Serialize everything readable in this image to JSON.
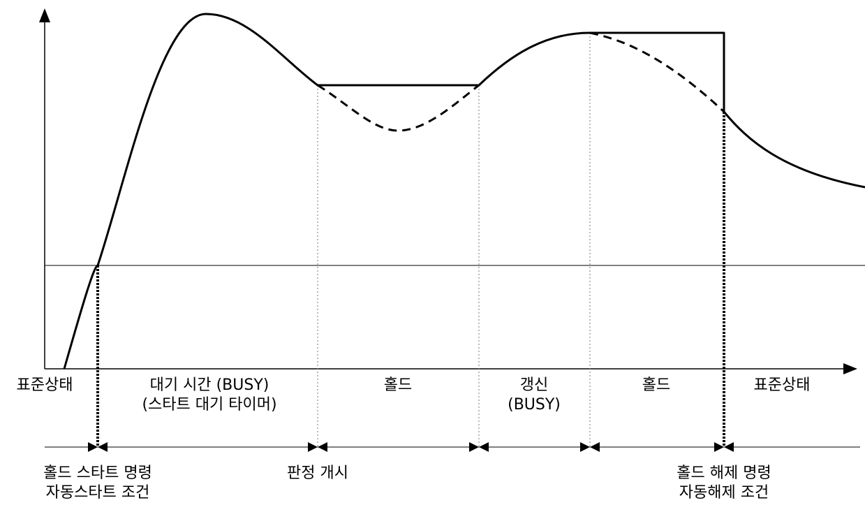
{
  "phases": [
    {
      "id": "standard-1",
      "lines": [
        "표준상태"
      ]
    },
    {
      "id": "wait",
      "lines": [
        "대기 시간 (BUSY)",
        "(스타트 대기 타이머)"
      ]
    },
    {
      "id": "hold-1",
      "lines": [
        "홀드"
      ]
    },
    {
      "id": "update",
      "lines": [
        "갱신",
        "(BUSY)"
      ]
    },
    {
      "id": "hold-2",
      "lines": [
        "홀드"
      ]
    },
    {
      "id": "standard-2",
      "lines": [
        "표준상태"
      ]
    }
  ],
  "events": [
    {
      "id": "hold-start",
      "lines": [
        "홀드 스타트 명령",
        "자동스타트 조건"
      ]
    },
    {
      "id": "judgement-start",
      "lines": [
        "판정 개시"
      ]
    },
    {
      "id": "hold-release",
      "lines": [
        "홀드 해제 명령",
        "자동해제 조건"
      ]
    }
  ]
}
